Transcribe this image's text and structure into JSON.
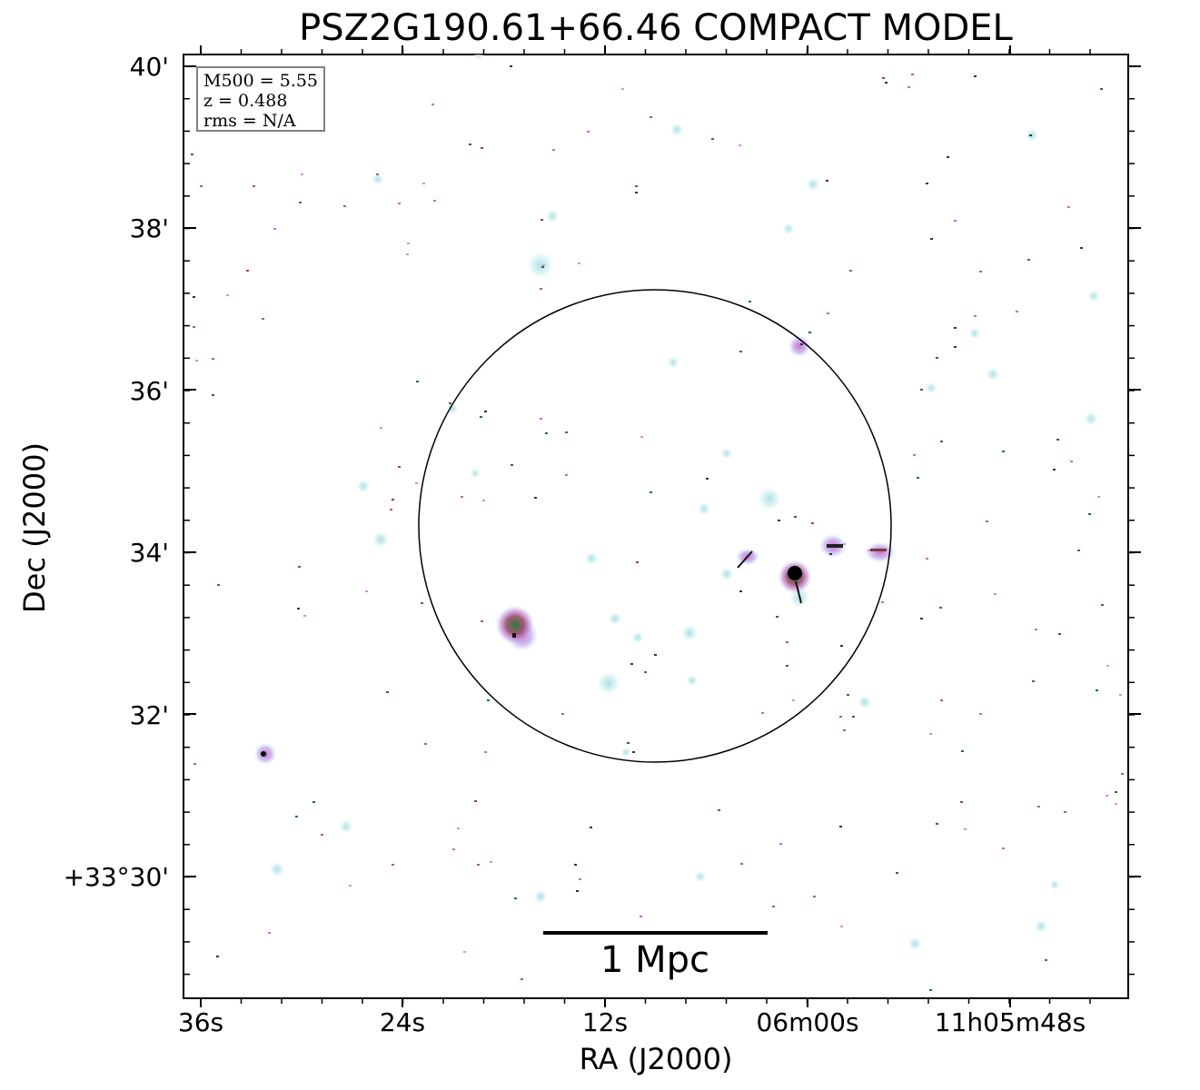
{
  "title": "PSZ2G190.61+66.46 COMPACT MODEL",
  "axes": {
    "xlabel": "RA (J2000)",
    "ylabel": "Dec (J2000)",
    "xticks": [
      "36s",
      "24s",
      "12s",
      "06m00s",
      "11h05m48s"
    ],
    "yticks": [
      "40'",
      "38'",
      "36'",
      "34'",
      "32'",
      "+33°30'"
    ]
  },
  "info": {
    "mass": "M500 = 5.55",
    "redshift": "z = 0.488",
    "rms": "rms = N/A"
  },
  "scalebar": {
    "label": "1 Mpc"
  },
  "colors": {
    "halo": "#bfe6e8",
    "magenta": "#c66ad0",
    "green": "#2f7a3b",
    "core": "#000000"
  }
}
